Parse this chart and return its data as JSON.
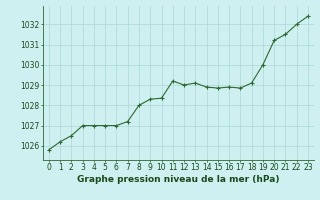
{
  "x": [
    0,
    1,
    2,
    3,
    4,
    5,
    6,
    7,
    8,
    9,
    10,
    11,
    12,
    13,
    14,
    15,
    16,
    17,
    18,
    19,
    20,
    21,
    22,
    23
  ],
  "y": [
    1025.8,
    1026.2,
    1026.5,
    1027.0,
    1027.0,
    1027.0,
    1027.0,
    1027.2,
    1028.0,
    1028.3,
    1028.35,
    1029.2,
    1029.0,
    1029.1,
    1028.9,
    1028.85,
    1028.9,
    1028.85,
    1029.1,
    1030.0,
    1031.2,
    1031.5,
    1032.0,
    1032.4
  ],
  "line_color": "#2d6a2d",
  "marker_color": "#2d6a2d",
  "bg_color": "#cff0f0",
  "grid_color": "#aad8d8",
  "xlabel": "Graphe pression niveau de la mer (hPa)",
  "xlabel_color": "#1a4a1a",
  "xlabel_fontsize": 6.5,
  "yticks": [
    1026,
    1027,
    1028,
    1029,
    1030,
    1031,
    1032
  ],
  "ylim": [
    1025.3,
    1032.9
  ],
  "xlim": [
    -0.5,
    23.5
  ],
  "tick_color": "#1a4a1a",
  "tick_fontsize": 5.5,
  "spine_color": "#2d6a2d",
  "marker_size": 3.5,
  "line_width": 0.8
}
